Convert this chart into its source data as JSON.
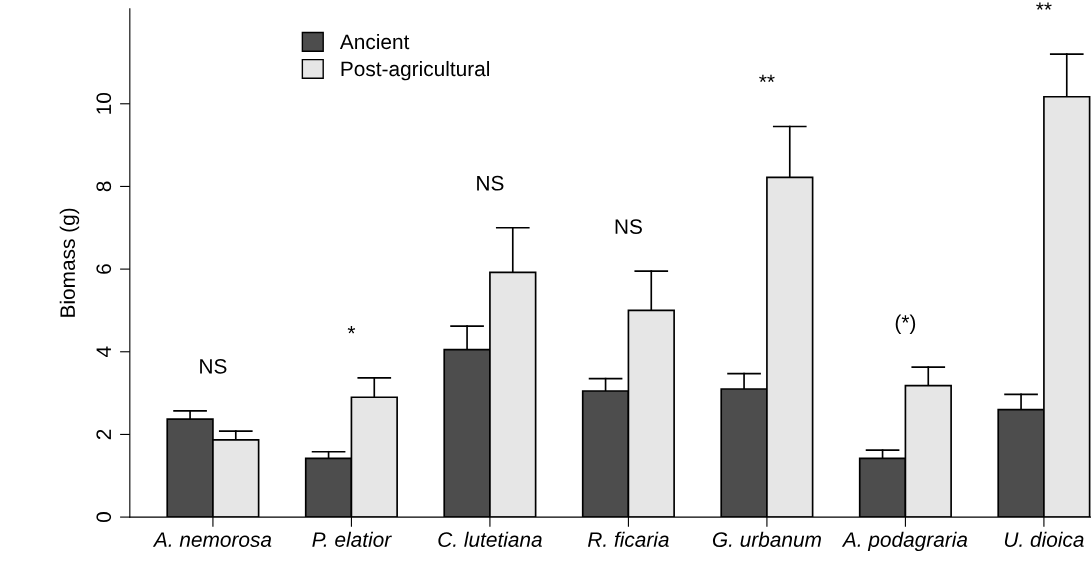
{
  "chart_data": {
    "type": "bar",
    "ylabel": "Biomass (g)",
    "categories": [
      "A. nemorosa",
      "P. elatior",
      "C. lutetiana",
      "R. ficaria",
      "G. urbanum",
      "A. podagraria",
      "U. dioica"
    ],
    "series": [
      {
        "name": "Ancient",
        "color": "#4d4d4d",
        "values": [
          2.37,
          1.42,
          4.05,
          3.05,
          3.1,
          1.42,
          2.6
        ],
        "errors": [
          [
            2.37,
            2.57
          ],
          [
            1.42,
            1.58
          ],
          [
            4.05,
            4.62
          ],
          [
            3.05,
            3.35
          ],
          [
            3.1,
            3.47
          ],
          [
            1.42,
            1.62
          ],
          [
            2.6,
            2.97
          ]
        ]
      },
      {
        "name": "Post-agricultural",
        "color": "#e6e6e6",
        "values": [
          1.87,
          2.9,
          5.92,
          5.0,
          8.22,
          3.18,
          10.17
        ],
        "errors": [
          [
            1.87,
            2.08
          ],
          [
            2.9,
            3.37
          ],
          [
            5.92,
            7.0
          ],
          [
            5.0,
            5.95
          ],
          [
            8.22,
            9.45
          ],
          [
            3.18,
            3.63
          ],
          [
            10.17,
            11.2
          ]
        ]
      }
    ],
    "ylim": [
      0,
      12.3
    ],
    "yticks": [
      0,
      2,
      4,
      6,
      8,
      10
    ],
    "grid": false,
    "legend": "top left",
    "annotations": [
      "NS",
      "*",
      "NS",
      "NS",
      "**",
      "(*)",
      "**"
    ]
  }
}
